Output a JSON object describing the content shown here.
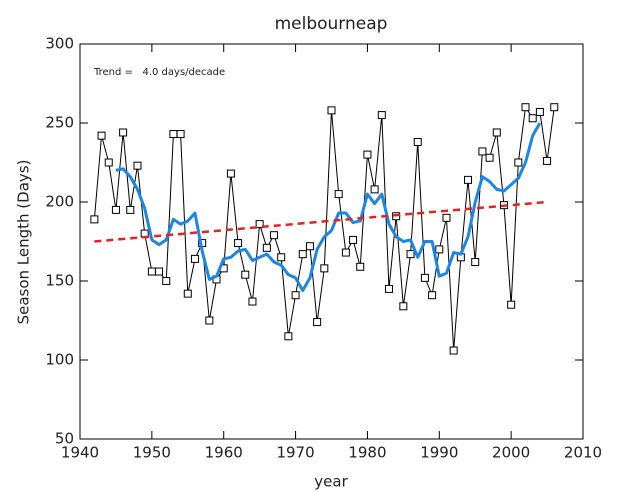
{
  "chart_data": {
    "type": "line",
    "title": "melbourneap",
    "x_label": "year",
    "y_label": "Season Length (Days)",
    "annotation": "Trend =   4.0 days/decade",
    "xlim": [
      1940,
      2010
    ],
    "xticks": [
      1940,
      1950,
      1960,
      1970,
      1980,
      1990,
      2000,
      2010
    ],
    "ylim": [
      50,
      300
    ],
    "yticks": [
      50,
      100,
      150,
      200,
      250,
      300
    ],
    "series": [
      {
        "color": "#000000",
        "marker": "square",
        "line_width": 1,
        "dash": false,
        "x": [
          1942,
          1943,
          1944,
          1945,
          1946,
          1947,
          1948,
          1949,
          1950,
          1951,
          1952,
          1953,
          1954,
          1955,
          1956,
          1957,
          1958,
          1959,
          1960,
          1961,
          1962,
          1963,
          1964,
          1965,
          1966,
          1967,
          1968,
          1969,
          1970,
          1971,
          1972,
          1973,
          1974,
          1975,
          1976,
          1977,
          1978,
          1979,
          1980,
          1981,
          1982,
          1983,
          1984,
          1985,
          1986,
          1987,
          1988,
          1989,
          1990,
          1991,
          1992,
          1993,
          1994,
          1995,
          1996,
          1997,
          1998,
          1999,
          2000,
          2001,
          2002,
          2003,
          2004,
          2005,
          2006
        ],
        "values": [
          189,
          242,
          225,
          195,
          244,
          195,
          223,
          180,
          156,
          156,
          150,
          243,
          243,
          142,
          164,
          174,
          125,
          151,
          158,
          218,
          174,
          154,
          137,
          186,
          171,
          179,
          165,
          115,
          141,
          167,
          172,
          124,
          158,
          258,
          205,
          168,
          176,
          159,
          230,
          208,
          255,
          145,
          191,
          134,
          167,
          238,
          152,
          141,
          170,
          190,
          106,
          165,
          214,
          162,
          232,
          228,
          244,
          198,
          135,
          225,
          260,
          253,
          257,
          226,
          260
        ]
      },
      {
        "color": "#1a86e8",
        "marker": "none",
        "line_width": 3,
        "dash": false,
        "x": [
          1945,
          1946,
          1947,
          1948,
          1949,
          1950,
          1951,
          1952,
          1953,
          1954,
          1955,
          1956,
          1957,
          1958,
          1959,
          1960,
          1961,
          1962,
          1963,
          1964,
          1965,
          1966,
          1967,
          1968,
          1969,
          1970,
          1971,
          1972,
          1973,
          1974,
          1975,
          1976,
          1977,
          1978,
          1979,
          1980,
          1981,
          1982,
          1983,
          1984,
          1985,
          1986,
          1987,
          1988,
          1989,
          1990,
          1991,
          1992,
          1993,
          1994,
          1995,
          1996,
          1997,
          1998,
          1999,
          2000,
          2001,
          2002,
          2003,
          2004
        ],
        "values": [
          220,
          221,
          216,
          208,
          196,
          176,
          173,
          176,
          189,
          186,
          188,
          193,
          169,
          151,
          153,
          164,
          165,
          169,
          170,
          163,
          165,
          167,
          162,
          160,
          154,
          152,
          144,
          152,
          170,
          178,
          182,
          193,
          193,
          187,
          188,
          205,
          199,
          205,
          186,
          178,
          175,
          176,
          165,
          175,
          175,
          153,
          155,
          168,
          167,
          178,
          200,
          216,
          213,
          208,
          207,
          211,
          215,
          225,
          242,
          250
        ]
      },
      {
        "color": "#e82020",
        "marker": "none",
        "line_width": 2.5,
        "dash": true,
        "x": [
          1942,
          2005
        ],
        "values": [
          175,
          200
        ]
      }
    ]
  }
}
